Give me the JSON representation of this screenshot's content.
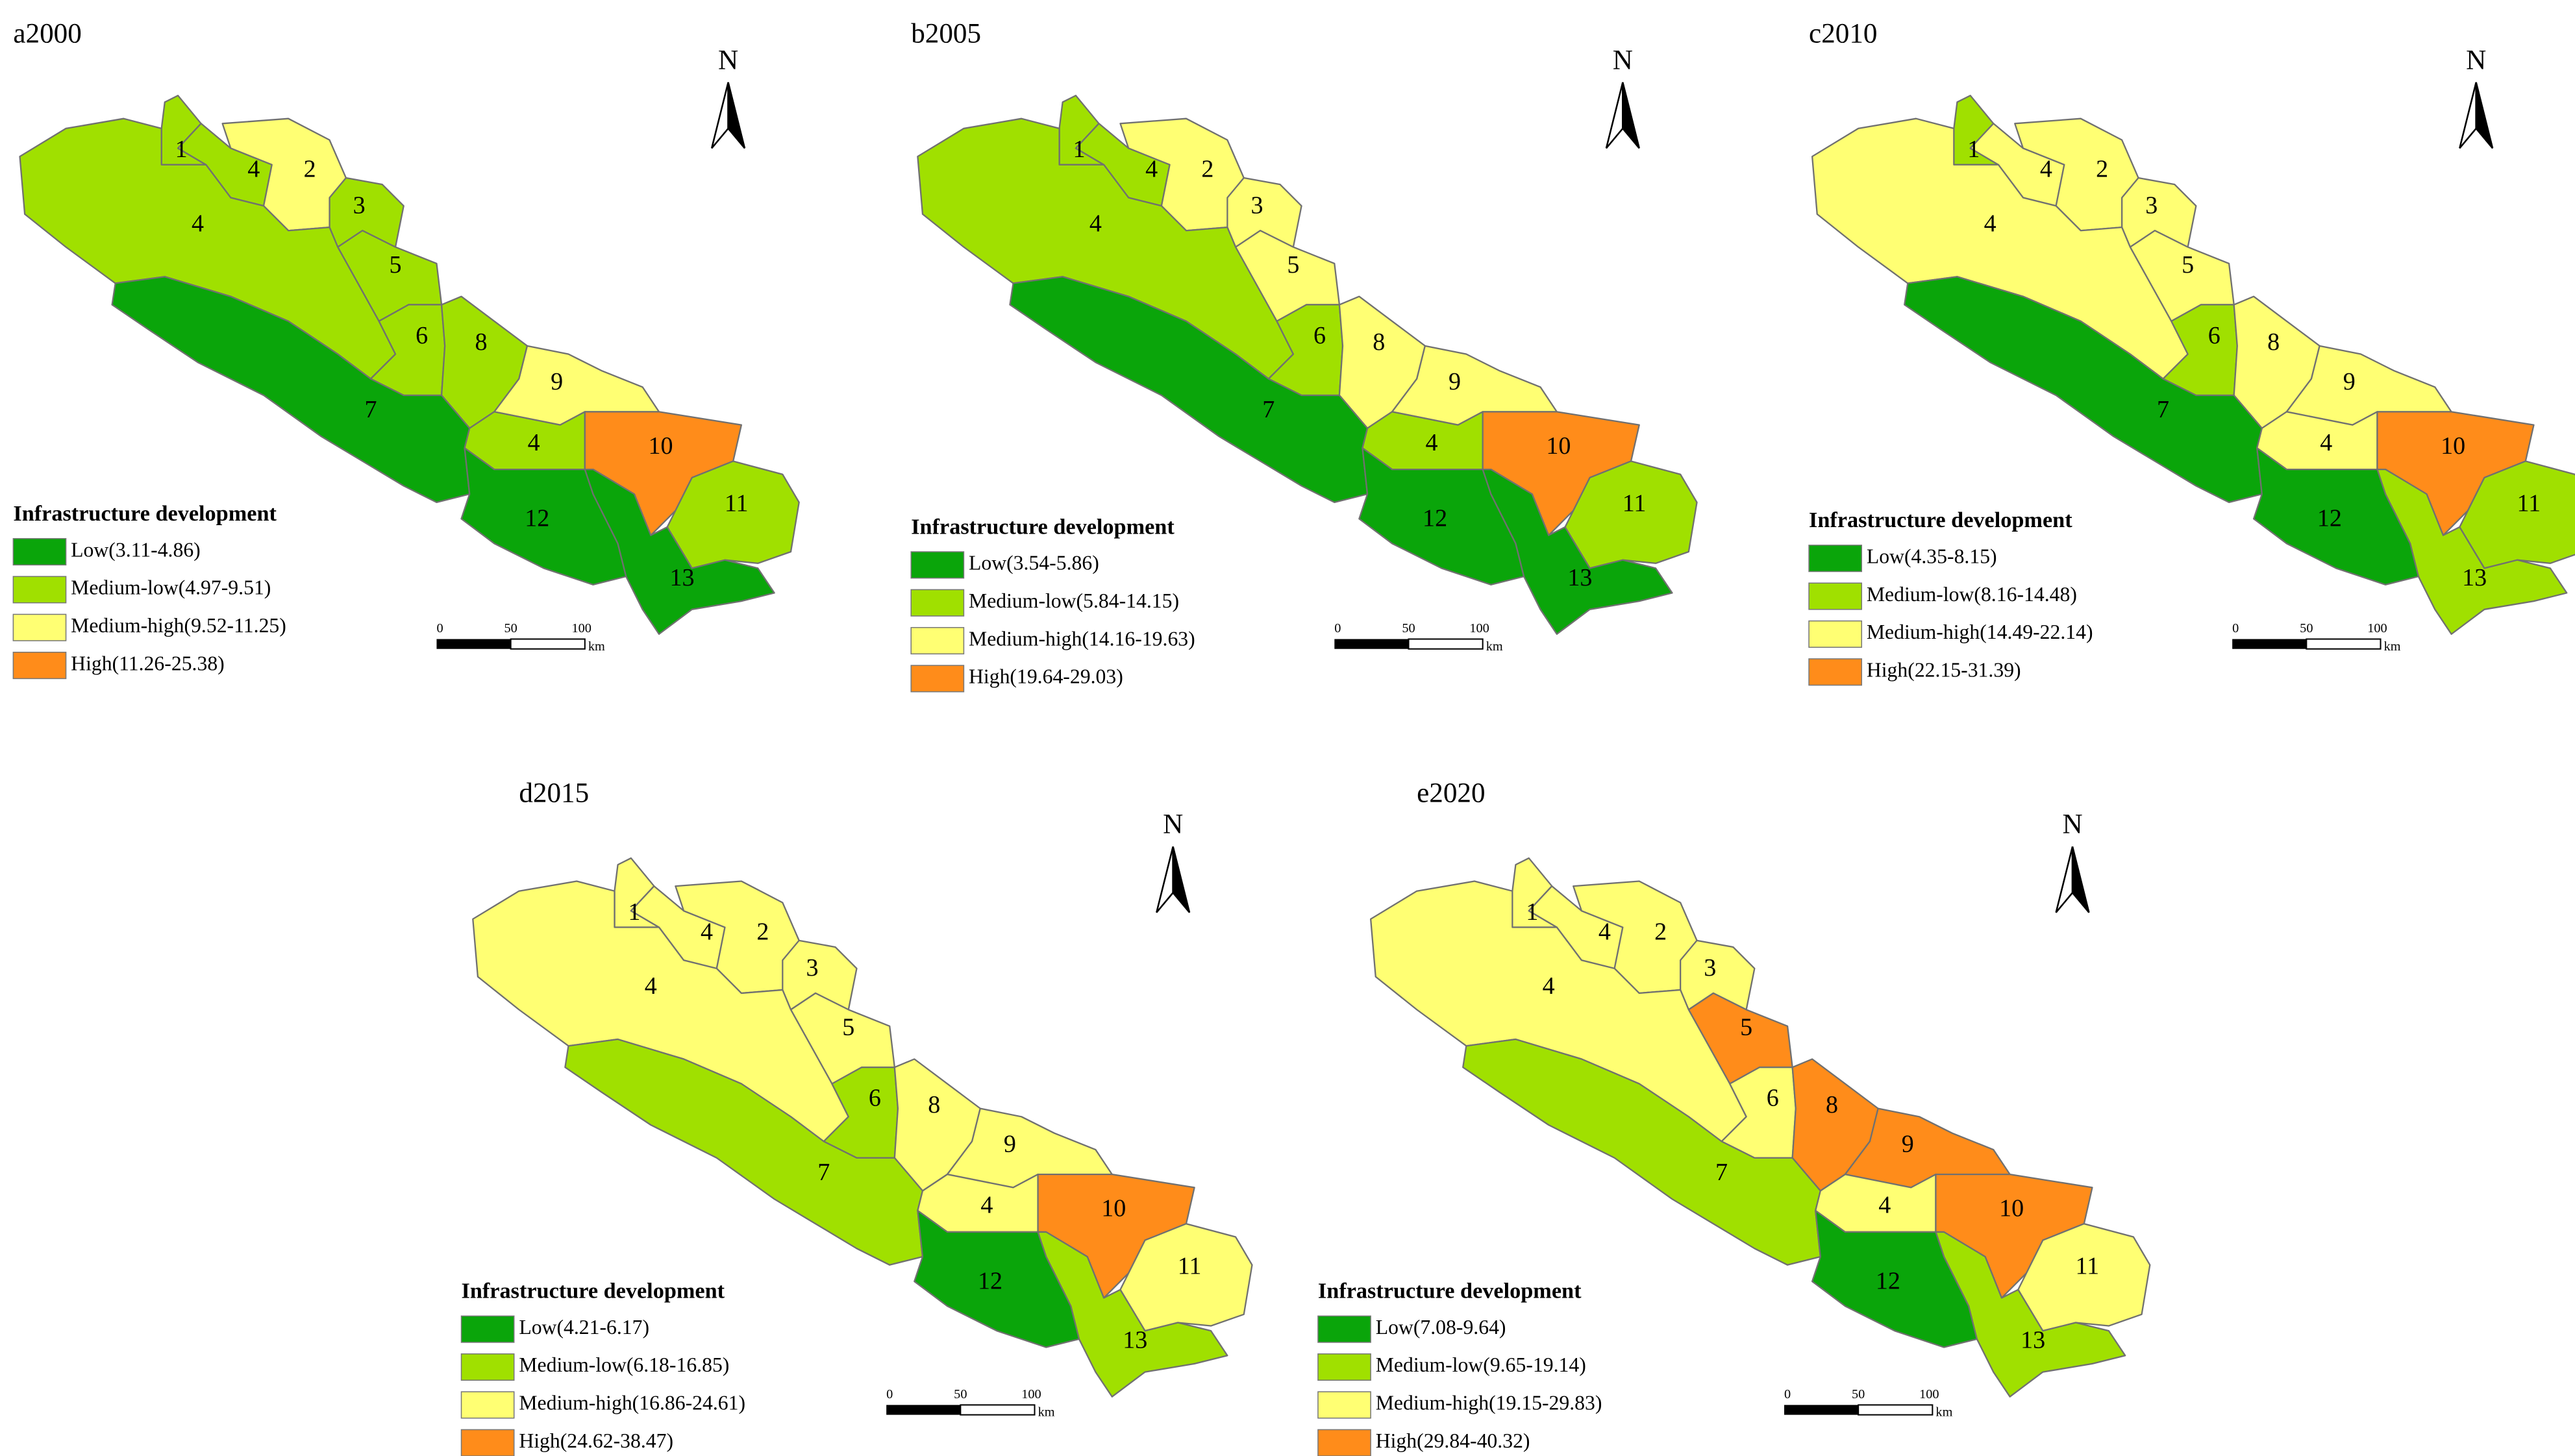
{
  "legend_title": "Infrastructure development",
  "north": "N",
  "scale_bar": {
    "ticks": [
      "0",
      "50",
      "100"
    ],
    "unit": "km"
  },
  "class_colors": [
    "#0aa50a",
    "#a0e000",
    "#ffff73",
    "#ff8c1a"
  ],
  "panels": [
    {
      "title": "a2000",
      "legend": [
        "Low(3.11-4.86)",
        "Medium-low(4.97-9.51)",
        "Medium-high(9.52-11.25)",
        "High(11.26-25.38)"
      ],
      "regions": [
        {
          "label": "1",
          "class": 1
        },
        {
          "label": "4",
          "class": 1
        },
        {
          "label": "2",
          "class": 2
        },
        {
          "label": "3",
          "class": 1
        },
        {
          "label": "5",
          "class": 1
        },
        {
          "label": "4",
          "class": 1
        },
        {
          "label": "6",
          "class": 1
        },
        {
          "label": "8",
          "class": 1
        },
        {
          "label": "7",
          "class": 0
        },
        {
          "label": "9",
          "class": 2
        },
        {
          "label": "4",
          "class": 1
        },
        {
          "label": "10",
          "class": 3
        },
        {
          "label": "11",
          "class": 1
        },
        {
          "label": "12",
          "class": 0
        },
        {
          "label": "13",
          "class": 0
        }
      ]
    },
    {
      "title": "b2005",
      "legend": [
        "Low(3.54-5.86)",
        "Medium-low(5.84-14.15)",
        "Medium-high(14.16-19.63)",
        "High(19.64-29.03)"
      ],
      "regions": [
        {
          "label": "1",
          "class": 1
        },
        {
          "label": "4",
          "class": 1
        },
        {
          "label": "2",
          "class": 2
        },
        {
          "label": "3",
          "class": 2
        },
        {
          "label": "5",
          "class": 2
        },
        {
          "label": "4",
          "class": 1
        },
        {
          "label": "6",
          "class": 1
        },
        {
          "label": "8",
          "class": 2
        },
        {
          "label": "7",
          "class": 0
        },
        {
          "label": "9",
          "class": 2
        },
        {
          "label": "4",
          "class": 1
        },
        {
          "label": "10",
          "class": 3
        },
        {
          "label": "11",
          "class": 1
        },
        {
          "label": "12",
          "class": 0
        },
        {
          "label": "13",
          "class": 0
        }
      ]
    },
    {
      "title": "c2010",
      "legend": [
        "Low(4.35-8.15)",
        "Medium-low(8.16-14.48)",
        "Medium-high(14.49-22.14)",
        "High(22.15-31.39)"
      ],
      "regions": [
        {
          "label": "1",
          "class": 1
        },
        {
          "label": "4",
          "class": 2
        },
        {
          "label": "2",
          "class": 2
        },
        {
          "label": "3",
          "class": 2
        },
        {
          "label": "5",
          "class": 2
        },
        {
          "label": "4",
          "class": 2
        },
        {
          "label": "6",
          "class": 1
        },
        {
          "label": "8",
          "class": 2
        },
        {
          "label": "7",
          "class": 0
        },
        {
          "label": "9",
          "class": 2
        },
        {
          "label": "4",
          "class": 2
        },
        {
          "label": "10",
          "class": 3
        },
        {
          "label": "11",
          "class": 1
        },
        {
          "label": "12",
          "class": 0
        },
        {
          "label": "13",
          "class": 1
        }
      ]
    },
    {
      "title": "d2015",
      "legend": [
        "Low(4.21-6.17)",
        "Medium-low(6.18-16.85)",
        "Medium-high(16.86-24.61)",
        "High(24.62-38.47)"
      ],
      "regions": [
        {
          "label": "1",
          "class": 2
        },
        {
          "label": "4",
          "class": 2
        },
        {
          "label": "2",
          "class": 2
        },
        {
          "label": "3",
          "class": 2
        },
        {
          "label": "5",
          "class": 2
        },
        {
          "label": "4",
          "class": 2
        },
        {
          "label": "6",
          "class": 1
        },
        {
          "label": "8",
          "class": 2
        },
        {
          "label": "7",
          "class": 1
        },
        {
          "label": "9",
          "class": 2
        },
        {
          "label": "4",
          "class": 2
        },
        {
          "label": "10",
          "class": 3
        },
        {
          "label": "11",
          "class": 2
        },
        {
          "label": "12",
          "class": 0
        },
        {
          "label": "13",
          "class": 1
        }
      ]
    },
    {
      "title": "e2020",
      "legend": [
        "Low(7.08-9.64)",
        "Medium-low(9.65-19.14)",
        "Medium-high(19.15-29.83)",
        "High(29.84-40.32)"
      ],
      "regions": [
        {
          "label": "1",
          "class": 2
        },
        {
          "label": "4",
          "class": 2
        },
        {
          "label": "2",
          "class": 2
        },
        {
          "label": "3",
          "class": 2
        },
        {
          "label": "5",
          "class": 3
        },
        {
          "label": "4",
          "class": 2
        },
        {
          "label": "6",
          "class": 2
        },
        {
          "label": "8",
          "class": 3
        },
        {
          "label": "7",
          "class": 1
        },
        {
          "label": "9",
          "class": 3
        },
        {
          "label": "4",
          "class": 2
        },
        {
          "label": "10",
          "class": 3
        },
        {
          "label": "11",
          "class": 2
        },
        {
          "label": "12",
          "class": 0
        },
        {
          "label": "13",
          "class": 1
        }
      ]
    }
  ]
}
